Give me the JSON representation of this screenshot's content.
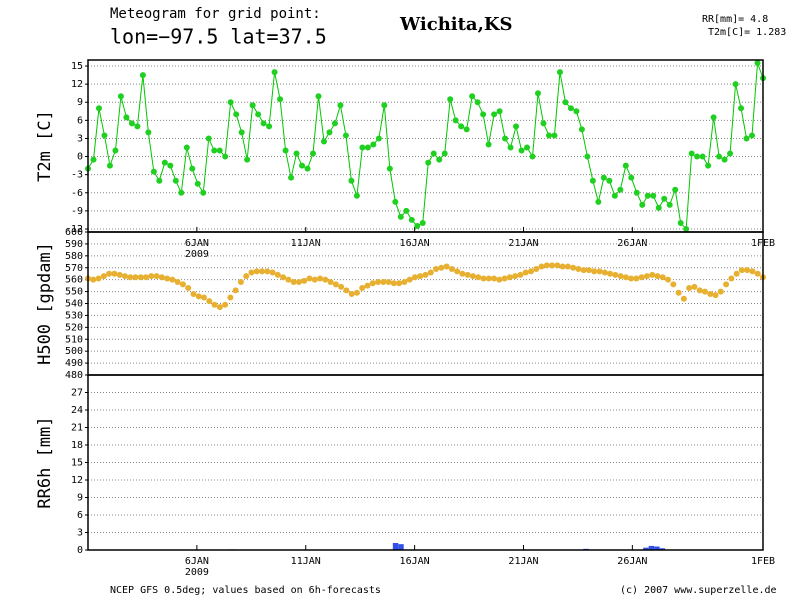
{
  "header": {
    "title": "Meteogram for grid point:",
    "coords": "lon=−97.5 lat=37.5",
    "place": "Wichita,KS",
    "rr": "RR[mm]= 4.8",
    "t2m": "T2m[C]= 1.283"
  },
  "footer": {
    "left": "NCEP GFS 0.5deg; values based on 6h-forecasts",
    "right": "(c) 2007 www.superzelle.de"
  },
  "chart_data": [
    {
      "type": "line",
      "ylabel": "T2m [C]",
      "color": "#00c800",
      "marker_color": "#20d020",
      "grid": true,
      "xlim": [
        "2009-01-01",
        "2009-02-01"
      ],
      "xticks": [
        {
          "value": "2009-01-06",
          "label": "6JAN"
        },
        {
          "value": "2009-01-11",
          "label": "11JAN"
        },
        {
          "value": "2009-01-16",
          "label": "16JAN"
        },
        {
          "value": "2009-01-21",
          "label": "21JAN"
        },
        {
          "value": "2009-01-26",
          "label": "26JAN"
        },
        {
          "value": "2009-02-01",
          "label": "1FEB"
        }
      ],
      "x_year": "2009",
      "ylim": [
        -12.5,
        16
      ],
      "yticks": [
        15,
        12,
        9,
        6,
        3,
        0,
        -3,
        -6,
        -9,
        -12
      ],
      "values": [
        -2,
        -0.5,
        8,
        3.5,
        -1.5,
        1,
        10,
        6.5,
        5.5,
        5,
        13.5,
        4,
        -2.5,
        -4,
        -1,
        -1.5,
        -4,
        -6,
        1.5,
        -2,
        -4.5,
        -6,
        3,
        1,
        1,
        0,
        9,
        7,
        4,
        -0.5,
        8.5,
        7,
        5.5,
        5,
        14,
        9.5,
        1,
        -3.5,
        0.5,
        -1.5,
        -2,
        0.5,
        10,
        2.5,
        4,
        5.5,
        8.5,
        3.5,
        -4,
        -6.5,
        1.5,
        1.5,
        2,
        3,
        8.5,
        -2,
        -7.5,
        -10,
        -9,
        -10.5,
        -11.5,
        -11,
        -1,
        0.5,
        -0.5,
        0.5,
        9.5,
        6,
        5,
        4.5,
        10,
        9,
        7,
        2,
        7,
        7.5,
        3,
        1.5,
        5,
        1,
        1.5,
        0,
        10.5,
        5.5,
        3.5,
        3.5,
        14,
        9,
        8,
        7.5,
        4.5,
        0,
        -4,
        -7.5,
        -3.5,
        -4,
        -6.5,
        -5.5,
        -1.5,
        -3.5,
        -6,
        -8,
        -6.5,
        -6.5,
        -8.5,
        -7,
        -8,
        -5.5,
        -11,
        -12,
        0.5,
        0,
        0,
        -1.5,
        6.5,
        0,
        -0.5,
        0.5,
        12,
        8,
        3,
        3.5,
        15.5,
        13
      ]
    },
    {
      "type": "dot",
      "ylabel": "H500 [gpdam]",
      "color": "#e8b030",
      "grid": true,
      "xlim": [
        "2009-01-01",
        "2009-02-01"
      ],
      "ylim": [
        480,
        600
      ],
      "yticks": [
        600,
        590,
        580,
        570,
        560,
        550,
        540,
        530,
        520,
        510,
        500,
        490,
        480
      ],
      "values": [
        561,
        560,
        561,
        563,
        565,
        565,
        564,
        563,
        562,
        562,
        562,
        562,
        563,
        563,
        562,
        561,
        560,
        558,
        556,
        553,
        548,
        546,
        545,
        542,
        539,
        537,
        539,
        545,
        551,
        558,
        563,
        566,
        567,
        567,
        567,
        566,
        564,
        562,
        560,
        558,
        558,
        559,
        561,
        560,
        561,
        560,
        558,
        556,
        554,
        551,
        548,
        549,
        553,
        555,
        557,
        558,
        558,
        558,
        557,
        557,
        558,
        560,
        562,
        563,
        564,
        566,
        569,
        570,
        571,
        569,
        567,
        565,
        564,
        563,
        562,
        561,
        561,
        561,
        560,
        561,
        562,
        563,
        564,
        566,
        567,
        569,
        571,
        572,
        572,
        572,
        571,
        571,
        570,
        569,
        568,
        568,
        567,
        567,
        566,
        565,
        564,
        563,
        562,
        561,
        561,
        562,
        563,
        564,
        563,
        562,
        560,
        556,
        549,
        544,
        553,
        554,
        551,
        550,
        548,
        547,
        550,
        556,
        561,
        565,
        568,
        568,
        567,
        565,
        562
      ]
    },
    {
      "type": "bar",
      "ylabel": "RR6h [mm]",
      "color": "#3050e8",
      "grid": true,
      "xlim": [
        "2009-01-01",
        "2009-02-01"
      ],
      "xticks": [
        {
          "value": "2009-01-06",
          "label": "6JAN"
        },
        {
          "value": "2009-01-11",
          "label": "11JAN"
        },
        {
          "value": "2009-01-16",
          "label": "16JAN"
        },
        {
          "value": "2009-01-21",
          "label": "21JAN"
        },
        {
          "value": "2009-01-26",
          "label": "26JAN"
        },
        {
          "value": "2009-02-01",
          "label": "1FEB"
        }
      ],
      "x_year": "2009",
      "ylim": [
        0,
        30
      ],
      "yticks": [
        0,
        3,
        6,
        9,
        12,
        15,
        18,
        21,
        24,
        27
      ],
      "values": [
        0,
        0,
        0,
        0,
        0,
        0,
        0,
        0,
        0,
        0,
        0,
        0,
        0,
        0,
        0,
        0,
        0,
        0,
        0,
        0,
        0,
        0,
        0,
        0,
        0,
        0,
        0.1,
        0,
        0,
        0,
        0,
        0,
        0,
        0,
        0,
        0,
        0,
        0,
        0,
        0,
        0,
        0,
        0,
        0,
        0,
        0,
        0,
        0,
        0,
        0,
        0,
        0,
        0,
        0,
        0,
        0,
        1.2,
        1.0,
        0,
        0,
        0,
        0,
        0,
        0,
        0,
        0,
        0,
        0,
        0,
        0,
        0,
        0,
        0,
        0,
        0,
        0,
        0,
        0,
        0,
        0,
        0,
        0,
        0,
        0,
        0,
        0,
        0,
        0,
        0,
        0,
        0,
        0.2,
        0,
        0,
        0,
        0,
        0,
        0,
        0,
        0,
        0,
        0,
        0.4,
        0.7,
        0.6,
        0.3,
        0,
        0,
        0,
        0,
        0,
        0,
        0,
        0,
        0,
        0,
        0,
        0,
        0,
        0,
        0,
        0,
        0,
        0
      ]
    }
  ]
}
